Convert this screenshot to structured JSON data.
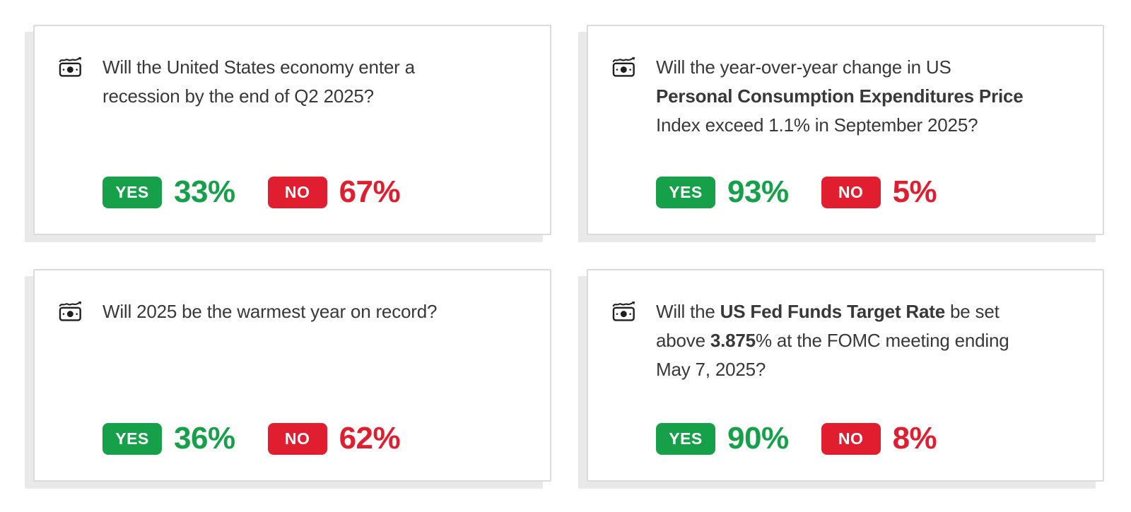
{
  "colors": {
    "yes": "#17A04A",
    "no": "#E01E2F",
    "card_border": "#DBDBDB",
    "card_shadow": "#E9E9E9",
    "question_text": "#383838"
  },
  "card_icon": "money-trend-icon",
  "cards": [
    {
      "question_segments": [
        {
          "t": "Will the United States economy enter a"
        },
        {
          "br": true
        },
        {
          "t": "recession by the end of Q2 2025?"
        }
      ],
      "yes": {
        "label": "YES",
        "value": "33%"
      },
      "no": {
        "label": "NO",
        "value": "67%"
      }
    },
    {
      "question_segments": [
        {
          "t": "Will the year-over-year change in US"
        },
        {
          "br": true
        },
        {
          "t": "Personal Consumption Expenditures Price",
          "b": true
        },
        {
          "br": true
        },
        {
          "t": "Index exceed 1.1% in September 2025?"
        }
      ],
      "yes": {
        "label": "YES",
        "value": "93%"
      },
      "no": {
        "label": "NO",
        "value": "5%"
      }
    },
    {
      "question_segments": [
        {
          "t": "Will 2025 be the warmest year on record?"
        }
      ],
      "yes": {
        "label": "YES",
        "value": "36%"
      },
      "no": {
        "label": "NO",
        "value": "62%"
      }
    },
    {
      "question_segments": [
        {
          "t": "Will the "
        },
        {
          "t": "US Fed Funds Target Rate",
          "b": true
        },
        {
          "t": " be set"
        },
        {
          "br": true
        },
        {
          "t": "above "
        },
        {
          "t": "3.875",
          "b": true
        },
        {
          "t": "% at the FOMC meeting ending"
        },
        {
          "br": true
        },
        {
          "t": "May 7, 2025?"
        }
      ],
      "yes": {
        "label": "YES",
        "value": "90%"
      },
      "no": {
        "label": "NO",
        "value": "8%"
      }
    }
  ]
}
